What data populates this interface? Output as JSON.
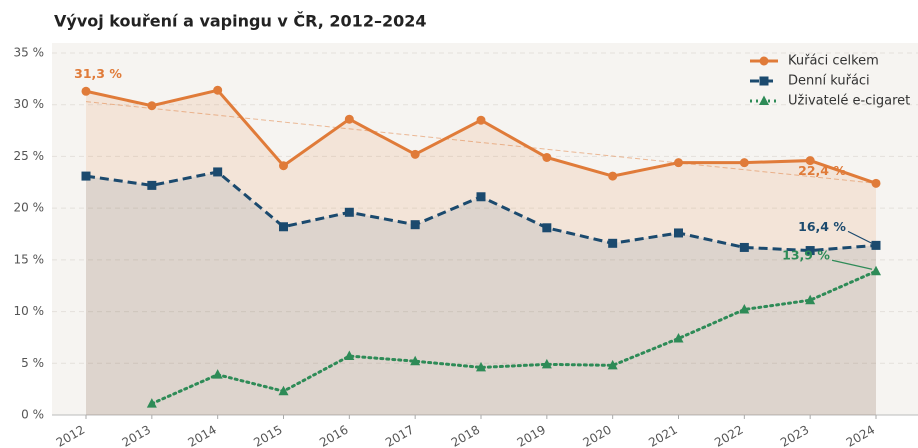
{
  "chart_data": {
    "type": "line",
    "title": "Vývoj kouření a vapingu v ČR, 2012–2024",
    "categories": [
      "2012",
      "2013",
      "2014",
      "2015",
      "2016",
      "2017",
      "2018",
      "2019",
      "2020",
      "2021",
      "2022",
      "2023",
      "2024"
    ],
    "series": [
      {
        "name": "Kuřáci celkem",
        "color": "#e07b39",
        "marker": "circle",
        "line": "solid",
        "area": true,
        "values": [
          31.3,
          29.9,
          31.4,
          24.1,
          28.6,
          25.2,
          28.5,
          24.9,
          23.1,
          24.4,
          24.4,
          24.6,
          22.4
        ],
        "trend": [
          30.3,
          22.4
        ]
      },
      {
        "name": "Denní kuřáci",
        "color": "#1b4a6e",
        "marker": "square",
        "line": "dashed",
        "area": true,
        "values": [
          23.1,
          22.2,
          23.5,
          18.2,
          19.6,
          18.4,
          21.1,
          18.1,
          16.6,
          17.6,
          16.2,
          15.9,
          16.4
        ]
      },
      {
        "name": "Uživatelé e-cigaret",
        "color": "#2e8b57",
        "marker": "triangle",
        "line": "dotted",
        "area": false,
        "values": [
          null,
          1.1,
          3.9,
          2.3,
          5.7,
          5.2,
          4.6,
          4.9,
          4.8,
          7.4,
          10.2,
          11.1,
          13.9
        ]
      }
    ],
    "annotations": [
      {
        "text": "31,3 %",
        "series": "Kuřáci celkem",
        "x": "2012"
      },
      {
        "text": "22,4 %",
        "series": "Kuřáci celkem",
        "x": "2024"
      },
      {
        "text": "16,4 %",
        "series": "Denní kuřáci",
        "x": "2024"
      },
      {
        "text": "13,9 %",
        "series": "Uživatelé e-cigaret",
        "x": "2024"
      }
    ],
    "ylim": [
      0,
      35
    ],
    "yticks": [
      {
        "value": 0,
        "label": "0 %"
      },
      {
        "value": 5,
        "label": "5 %"
      },
      {
        "value": 10,
        "label": "10 %"
      },
      {
        "value": 15,
        "label": "15 %"
      },
      {
        "value": 20,
        "label": "20 %"
      },
      {
        "value": 25,
        "label": "25 %"
      },
      {
        "value": 30,
        "label": "30 %"
      },
      {
        "value": 35,
        "label": "35 %"
      }
    ],
    "grid": true,
    "legend": "upper right"
  }
}
